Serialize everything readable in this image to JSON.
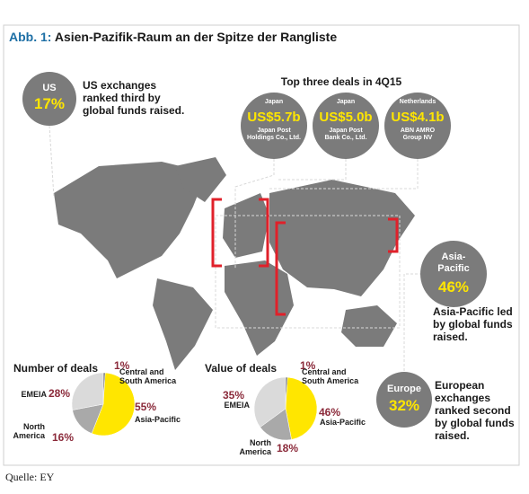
{
  "header": {
    "label": "Abb. 1:",
    "title": "Asien-Pazifik-Raum an der Spitze der Rangliste"
  },
  "callouts": [
    {
      "region": "US",
      "share": "17%",
      "text": "US exchanges ranked third by global funds raised."
    },
    {
      "region": "Asia-Pacific",
      "share": "46%",
      "text": "Asia-Pacific led by global funds raised."
    },
    {
      "region": "Europe",
      "share": "32%",
      "text": "European exchanges ranked second by global funds raised."
    }
  ],
  "deals": {
    "title": "Top three deals in 4Q15",
    "items": [
      {
        "country": "Japan",
        "amount": "US$5.7b",
        "company": "Japan Post Holdings Co., Ltd."
      },
      {
        "country": "Japan",
        "amount": "US$5.0b",
        "company": "Japan Post Bank Co., Ltd."
      },
      {
        "country": "Netherlands",
        "amount": "US$4.1b",
        "company": "ABN AMRO Group NV"
      }
    ]
  },
  "chart_data": [
    {
      "type": "pie",
      "title": "Number of deals",
      "categories": [
        "Central and South America",
        "Asia-Pacific",
        "North America",
        "EMEIA"
      ],
      "values": [
        1,
        55,
        16,
        28
      ],
      "value_labels": [
        "1%",
        "55%",
        "16%",
        "28%"
      ],
      "colors": [
        "#6a6a6a",
        "#ffe600",
        "#a9a9a9",
        "#dadada"
      ]
    },
    {
      "type": "pie",
      "title": "Value of deals",
      "categories": [
        "Central and South America",
        "Asia-Pacific",
        "North America",
        "EMEIA"
      ],
      "values": [
        1,
        46,
        18,
        35
      ],
      "value_labels": [
        "1%",
        "46%",
        "18%",
        "35%"
      ],
      "colors": [
        "#6a6a6a",
        "#ffe600",
        "#a9a9a9",
        "#dadada"
      ]
    }
  ],
  "source": "Quelle: EY"
}
